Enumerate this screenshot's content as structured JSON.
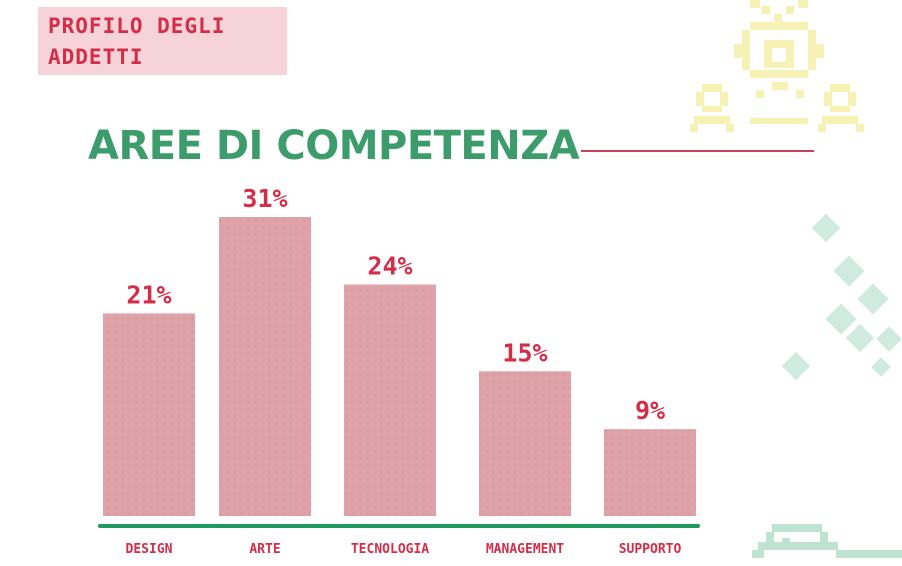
{
  "header": {
    "line1": "PROFILO DEGLI",
    "line2": "ADDETTI"
  },
  "colors": {
    "accent_red": "#d42d48",
    "bar_fill": "#dea2a8",
    "title_green": "#3c9c6c",
    "axis_green": "#1f9a5c",
    "header_bg": "#f6d3d8"
  },
  "chart_data": {
    "type": "bar",
    "title": "AREE DI COMPETENZA",
    "categories": [
      "DESIGN",
      "ARTE",
      "TECNOLOGIA",
      "MANAGEMENT",
      "SUPPORTO"
    ],
    "values": [
      21,
      31,
      24,
      15,
      9
    ],
    "value_labels": [
      "21%",
      "31%",
      "24%",
      "15%",
      "9%"
    ],
    "unit": "%",
    "ylim": [
      0,
      31
    ],
    "grid": false,
    "legend": "none"
  }
}
